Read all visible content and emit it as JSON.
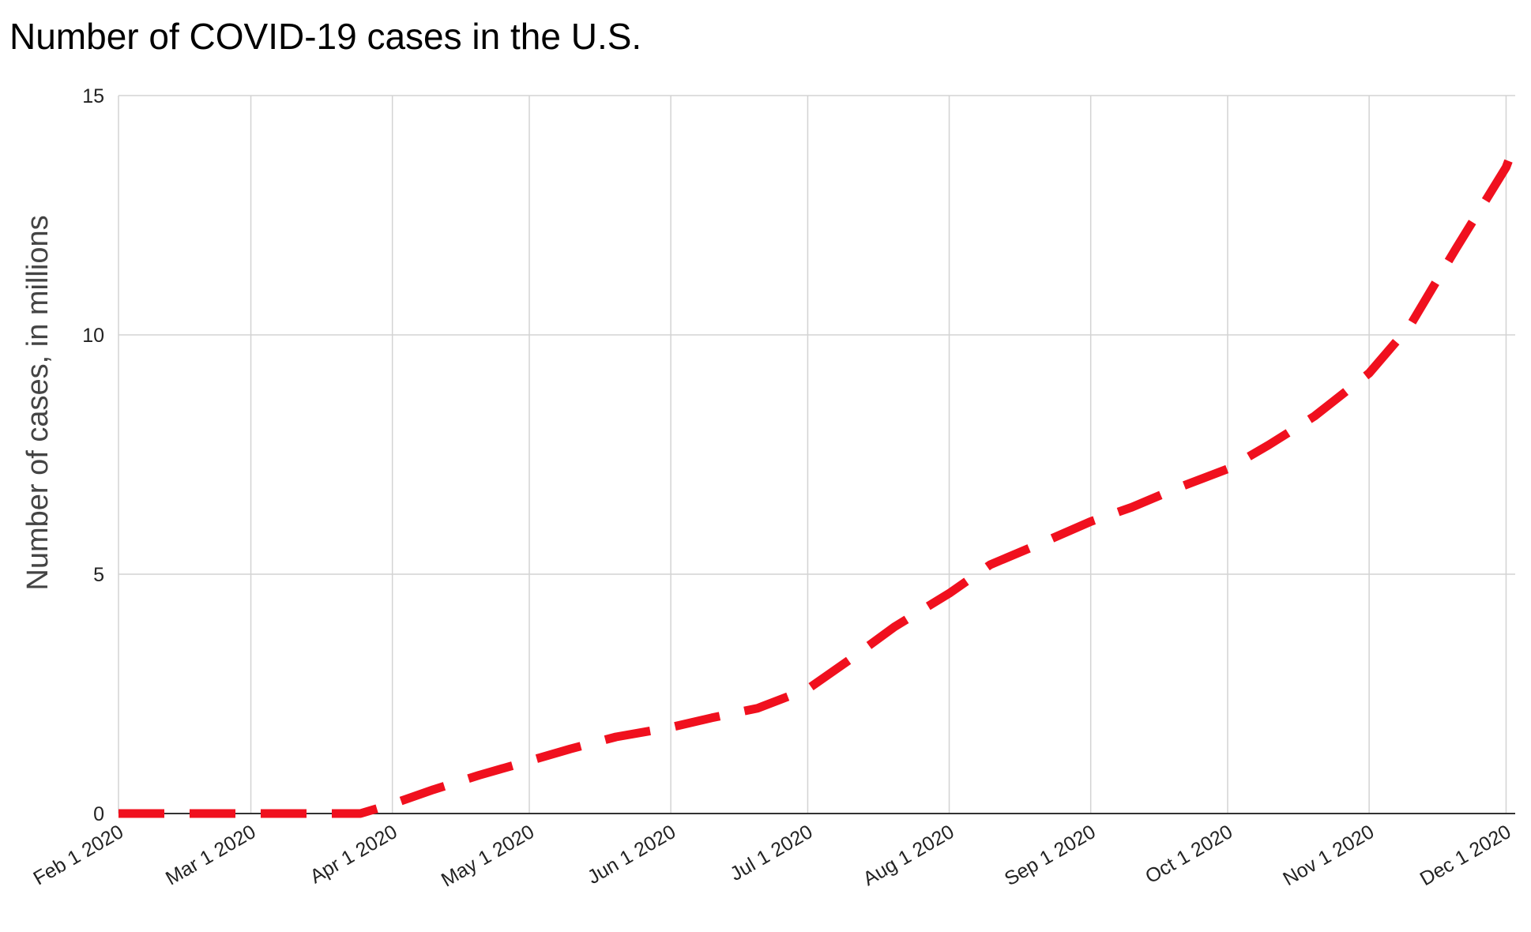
{
  "chart_data": {
    "type": "line",
    "title": "Number of COVID-19 cases in the U.S.",
    "xlabel": "",
    "ylabel": "Number of cases, in millions",
    "x_ticks": [
      "Feb 1 2020",
      "Mar 1 2020",
      "Apr 1 2020",
      "May 1 2020",
      "Jun 1 2020",
      "Jul 1 2020",
      "Aug 1 2020",
      "Sep 1 2020",
      "Oct 1 2020",
      "Nov 1 2020",
      "Dec 1 2020"
    ],
    "y_ticks": [
      "0",
      "5",
      "10",
      "15"
    ],
    "ylim": [
      0,
      15
    ],
    "xlim": [
      "2020-02-01",
      "2020-12-03"
    ],
    "grid": true,
    "legend": "none",
    "series": [
      {
        "color": "#f0101e",
        "line_style": "dashed",
        "x": [
          "2020-02-01",
          "2020-02-15",
          "2020-03-01",
          "2020-03-15",
          "2020-03-25",
          "2020-04-01",
          "2020-04-10",
          "2020-04-20",
          "2020-05-01",
          "2020-05-10",
          "2020-05-20",
          "2020-06-01",
          "2020-06-10",
          "2020-06-20",
          "2020-07-01",
          "2020-07-10",
          "2020-07-20",
          "2020-08-01",
          "2020-08-10",
          "2020-08-20",
          "2020-09-01",
          "2020-09-10",
          "2020-09-20",
          "2020-10-01",
          "2020-10-10",
          "2020-10-20",
          "2020-11-01",
          "2020-11-10",
          "2020-11-20",
          "2020-12-01",
          "2020-12-03"
        ],
        "y": [
          0,
          0,
          0,
          0,
          0,
          0.2,
          0.5,
          0.8,
          1.1,
          1.35,
          1.6,
          1.8,
          2.0,
          2.2,
          2.6,
          3.2,
          3.9,
          4.6,
          5.2,
          5.6,
          6.1,
          6.4,
          6.8,
          7.2,
          7.7,
          8.3,
          9.2,
          10.2,
          11.8,
          13.5,
          14.0
        ]
      }
    ]
  }
}
